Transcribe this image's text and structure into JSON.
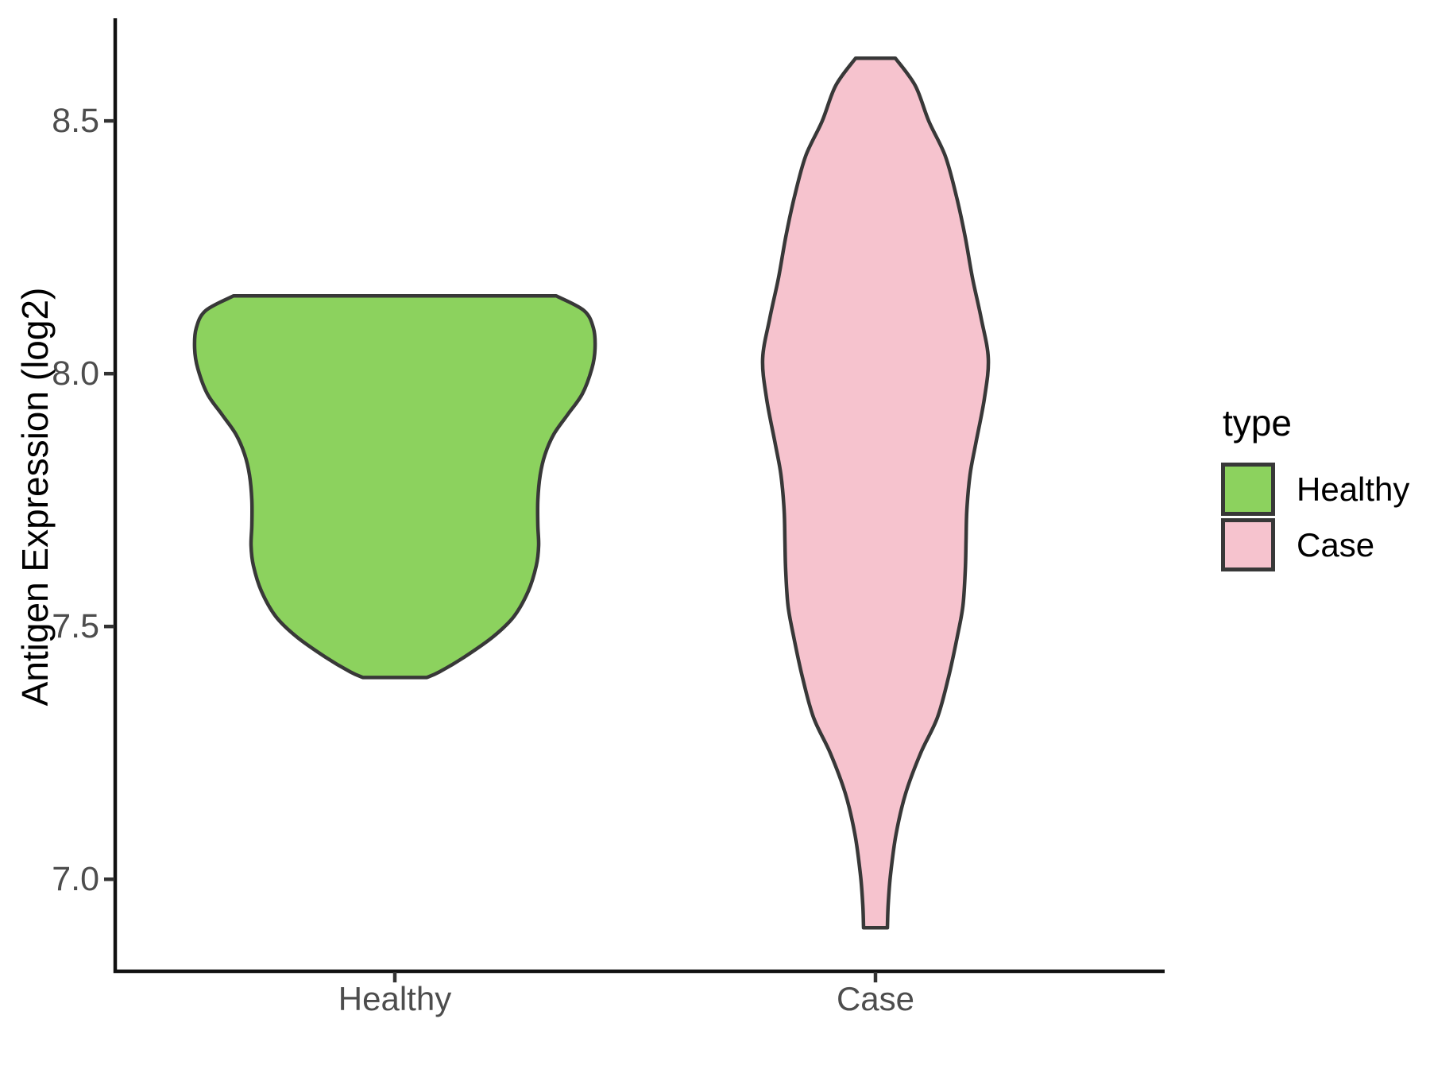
{
  "figure": {
    "background": "#ffffff"
  },
  "y_axis": {
    "title": "Antigen Expression (log2)",
    "tick_labels": [
      "8.5",
      "8.0",
      "7.5",
      "7.0"
    ],
    "tick_values": [
      8.5,
      8.0,
      7.5,
      7.0
    ],
    "text_color": "#4d4d4d"
  },
  "x_axis": {
    "categories": [
      "Healthy",
      "Case"
    ],
    "text_color": "#4d4d4d"
  },
  "legend": {
    "title": "type",
    "items": [
      {
        "label": "Healthy",
        "color": "#8CD25E"
      },
      {
        "label": "Case",
        "color": "#F6C3CE"
      }
    ]
  },
  "chart_data": {
    "type": "violin",
    "title": "",
    "xlabel": "",
    "ylabel": "Antigen Expression (log2)",
    "categories": [
      "Healthy",
      "Case"
    ],
    "ylim": [
      6.818,
      8.703
    ],
    "grid": false,
    "legend_position": "right",
    "outline_color": "#383838",
    "series": [
      {
        "name": "Healthy",
        "color": "#8CD25E",
        "data_range": [
          7.4,
          8.15
        ],
        "profile": [
          [
            8.154,
            203
          ],
          [
            8.125,
            238
          ],
          [
            8.09,
            250
          ],
          [
            8.05,
            252
          ],
          [
            8.01,
            248
          ],
          [
            7.96,
            236
          ],
          [
            7.92,
            218
          ],
          [
            7.88,
            200
          ],
          [
            7.84,
            189
          ],
          [
            7.8,
            183
          ],
          [
            7.75,
            180
          ],
          [
            7.7,
            180
          ],
          [
            7.66,
            181
          ],
          [
            7.62,
            178
          ],
          [
            7.57,
            168
          ],
          [
            7.52,
            150
          ],
          [
            7.48,
            124
          ],
          [
            7.44,
            88
          ],
          [
            7.41,
            56
          ],
          [
            7.399,
            40
          ]
        ]
      },
      {
        "name": "Case",
        "color": "#F6C3CE",
        "data_range": [
          6.9,
          8.62
        ],
        "profile": [
          [
            8.624,
            25
          ],
          [
            8.57,
            50
          ],
          [
            8.5,
            67
          ],
          [
            8.43,
            88
          ],
          [
            8.35,
            102
          ],
          [
            8.27,
            113
          ],
          [
            8.19,
            122
          ],
          [
            8.11,
            133
          ],
          [
            8.03,
            142
          ],
          [
            7.95,
            137
          ],
          [
            7.86,
            126
          ],
          [
            7.8,
            119
          ],
          [
            7.73,
            115
          ],
          [
            7.67,
            114
          ],
          [
            7.61,
            113
          ],
          [
            7.54,
            110
          ],
          [
            7.48,
            103
          ],
          [
            7.4,
            92
          ],
          [
            7.32,
            78
          ],
          [
            7.25,
            57
          ],
          [
            7.17,
            38
          ],
          [
            7.09,
            26
          ],
          [
            7.01,
            19
          ],
          [
            6.95,
            16
          ],
          [
            6.904,
            15
          ]
        ]
      }
    ]
  }
}
